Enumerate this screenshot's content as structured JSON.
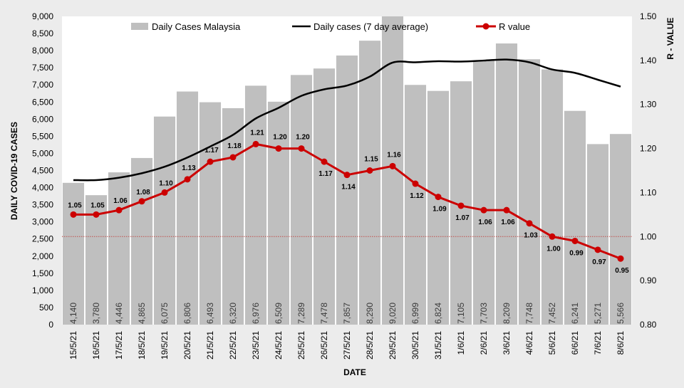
{
  "chart_data": {
    "type": "bar",
    "xlabel": "DATE",
    "ylabel": "DAILY COVID-19 CASES",
    "y2label": "R - VALUE",
    "ylim": [
      0,
      9000
    ],
    "y2lim": [
      0.8,
      1.5
    ],
    "yticks": [
      0,
      500,
      1000,
      1500,
      2000,
      2500,
      3000,
      3500,
      4000,
      4500,
      5000,
      5500,
      6000,
      6500,
      7000,
      7500,
      8000,
      8500,
      9000
    ],
    "ytick_labels": [
      "0",
      "500",
      "1,000",
      "1,500",
      "2,000",
      "2,500",
      "3,000",
      "3,500",
      "4,000",
      "4,500",
      "5,000",
      "5,500",
      "6,000",
      "6,500",
      "7,000",
      "7,500",
      "8,000",
      "8,500",
      "9,000"
    ],
    "y2ticks": [
      0.8,
      0.9,
      1.0,
      1.1,
      1.2,
      1.3,
      1.4,
      1.5
    ],
    "y2tick_labels": [
      "0.80",
      "0.90",
      "1.00",
      "1.10",
      "1.20",
      "1.30",
      "1.40",
      "1.50"
    ],
    "categories": [
      "15/5/21",
      "16/5/21",
      "17/5/21",
      "18/5/21",
      "19/5/21",
      "20/5/21",
      "21/5/21",
      "22/5/21",
      "23/5/21",
      "24/5/21",
      "25/5/21",
      "26/5/21",
      "27/5/21",
      "28/5/21",
      "29/5/21",
      "30/5/21",
      "31/5/21",
      "1/6/21",
      "2/6/21",
      "3/6/21",
      "4/6/21",
      "5/6/21",
      "6/6/21",
      "7/6/21",
      "8/6/21"
    ],
    "legend_position": "top",
    "reference_line": {
      "axis": "y2",
      "value": 1.0,
      "style": "dotted",
      "color": "#c0504d"
    },
    "series": [
      {
        "name": "Daily Cases Malaysia",
        "type": "bar",
        "axis": "y",
        "color": "#bfbfbf",
        "values": [
          4140,
          3780,
          4446,
          4865,
          6075,
          6806,
          6493,
          6320,
          6976,
          6509,
          7289,
          7478,
          7857,
          8290,
          9020,
          6999,
          6824,
          7105,
          7703,
          8209,
          7748,
          7452,
          6241,
          5271,
          5566
        ],
        "labels": [
          "4,140",
          "3,780",
          "4,446",
          "4,865",
          "6,075",
          "6,806",
          "6,493",
          "6,320",
          "6,976",
          "6,509",
          "7,289",
          "7,478",
          "7,857",
          "8,290",
          "9,020",
          "6,999",
          "6,824",
          "7,105",
          "7,703",
          "8,209",
          "7,748",
          "7,452",
          "6,241",
          "5,271",
          "5,566"
        ]
      },
      {
        "name": "Daily cases (7 day average)",
        "type": "line",
        "axis": "y",
        "color": "#000000",
        "values": [
          4220,
          4220,
          4290,
          4420,
          4610,
          4880,
          5200,
          5540,
          6020,
          6330,
          6680,
          6870,
          6980,
          7240,
          7650,
          7660,
          7690,
          7680,
          7710,
          7740,
          7660,
          7450,
          7350,
          7150,
          6950
        ]
      },
      {
        "name": "R value",
        "type": "line",
        "axis": "y2",
        "color": "#cc0000",
        "values": [
          1.05,
          1.05,
          1.06,
          1.08,
          1.1,
          1.13,
          1.17,
          1.18,
          1.21,
          1.2,
          1.2,
          1.17,
          1.14,
          1.15,
          1.16,
          1.12,
          1.09,
          1.07,
          1.06,
          1.06,
          1.03,
          1.0,
          0.99,
          0.97,
          0.95
        ],
        "labels": [
          "1.05",
          "1.05",
          "1.06",
          "1.08",
          "1.10",
          "1.13",
          "1.17",
          "1.18",
          "1.21",
          "1.20",
          "1.20",
          "1.17",
          "1.14",
          "1.15",
          "1.16",
          "1.12",
          "1.09",
          "1.07",
          "1.06",
          "1.06",
          "1.03",
          "1.00",
          "0.99",
          "0.97",
          "0.95"
        ]
      }
    ]
  }
}
